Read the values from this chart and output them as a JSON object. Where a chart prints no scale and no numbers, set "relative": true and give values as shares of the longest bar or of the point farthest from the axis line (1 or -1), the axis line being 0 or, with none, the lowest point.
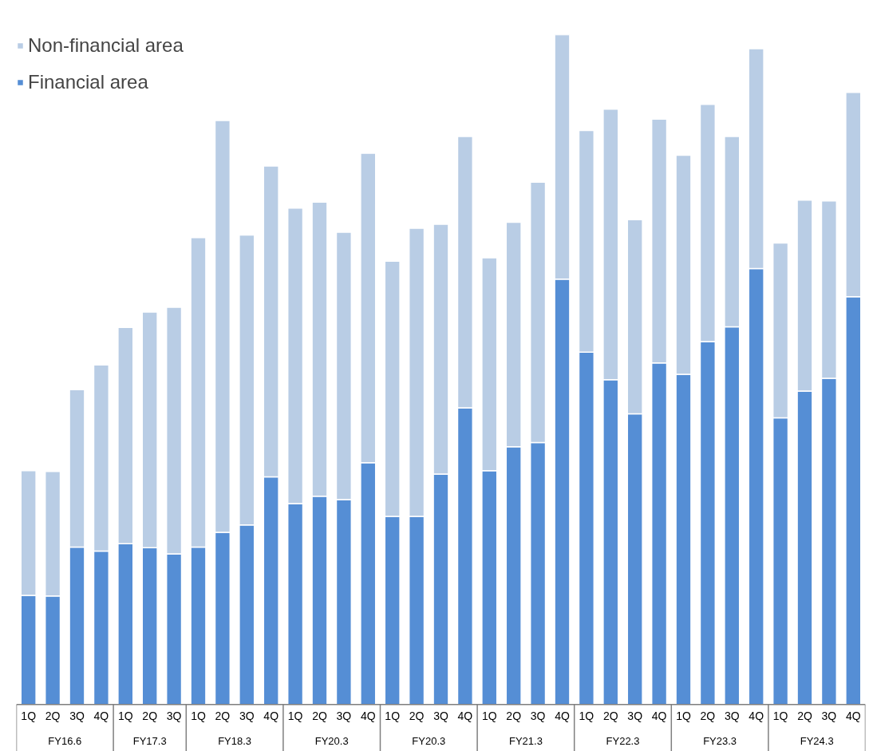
{
  "chart_data": {
    "type": "bar",
    "stacked": true,
    "relative": true,
    "legend": "top left",
    "grid": false,
    "categories": [
      "1Q",
      "2Q",
      "3Q",
      "4Q",
      "1Q",
      "2Q",
      "3Q",
      "1Q",
      "2Q",
      "3Q",
      "4Q",
      "1Q",
      "2Q",
      "3Q",
      "4Q",
      "1Q",
      "2Q",
      "3Q",
      "4Q",
      "1Q",
      "2Q",
      "3Q",
      "4Q",
      "1Q",
      "2Q",
      "3Q",
      "4Q",
      "1Q",
      "2Q",
      "3Q",
      "4Q",
      "1Q",
      "2Q",
      "3Q",
      "4Q"
    ],
    "annotations": [
      "FY16.6",
      "FY17.3",
      "FY18.3",
      "FY20.3",
      "FY20.3",
      "FY21.3",
      "FY22.3",
      "FY23.3",
      "FY24.3"
    ],
    "series": [
      {
        "name": "Financial area",
        "color": "#558ed5",
        "values": [
          0.163,
          0.162,
          0.235,
          0.229,
          0.24,
          0.234,
          0.225,
          0.235,
          0.257,
          0.268,
          0.34,
          0.3,
          0.311,
          0.306,
          0.361,
          0.281,
          0.281,
          0.344,
          0.443,
          0.349,
          0.385,
          0.391,
          0.635,
          0.526,
          0.485,
          0.434,
          0.51,
          0.493,
          0.542,
          0.564,
          0.651,
          0.428,
          0.468,
          0.487,
          0.609
        ]
      },
      {
        "name": "Non-financial area",
        "color": "#b9cde5",
        "values": [
          0.186,
          0.186,
          0.235,
          0.278,
          0.323,
          0.352,
          0.368,
          0.462,
          0.615,
          0.433,
          0.464,
          0.441,
          0.439,
          0.399,
          0.462,
          0.381,
          0.43,
          0.373,
          0.405,
          0.318,
          0.335,
          0.389,
          0.365,
          0.331,
          0.404,
          0.29,
          0.364,
          0.327,
          0.354,
          0.284,
          0.328,
          0.261,
          0.285,
          0.265,
          0.305
        ]
      }
    ]
  }
}
